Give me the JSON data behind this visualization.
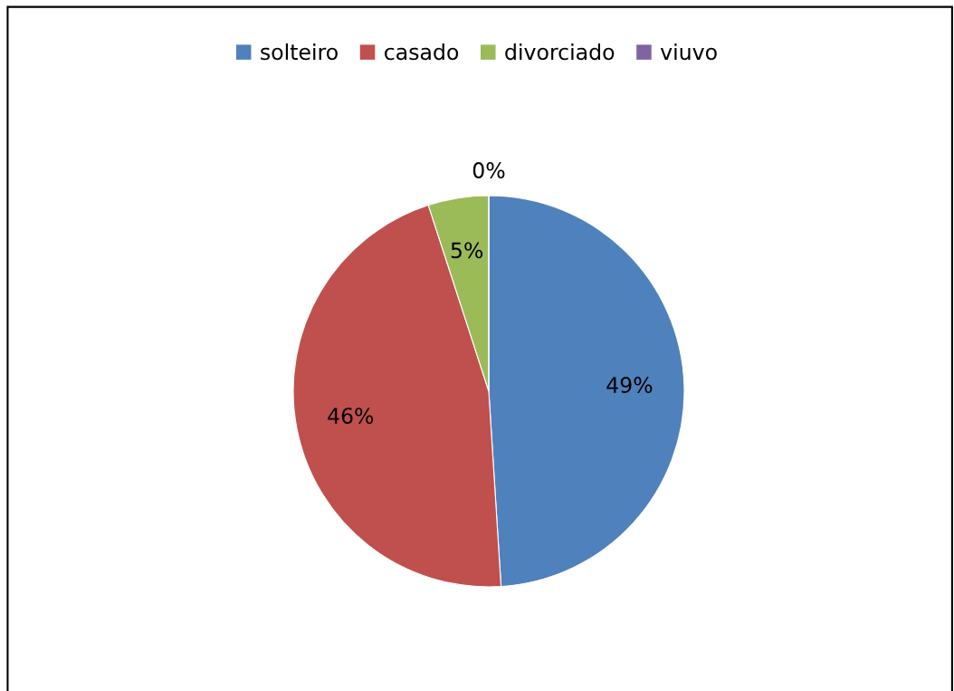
{
  "chart_data": {
    "type": "pie",
    "categories": [
      "solteiro",
      "casado",
      "divorciado",
      "viuvo"
    ],
    "values": [
      49,
      46,
      5,
      0
    ],
    "colors": [
      "#4f81bd",
      "#c0504d",
      "#9bbb59",
      "#8064a2"
    ],
    "value_labels": [
      "49%",
      "46%",
      "5%",
      "0%"
    ],
    "legend": "top"
  }
}
